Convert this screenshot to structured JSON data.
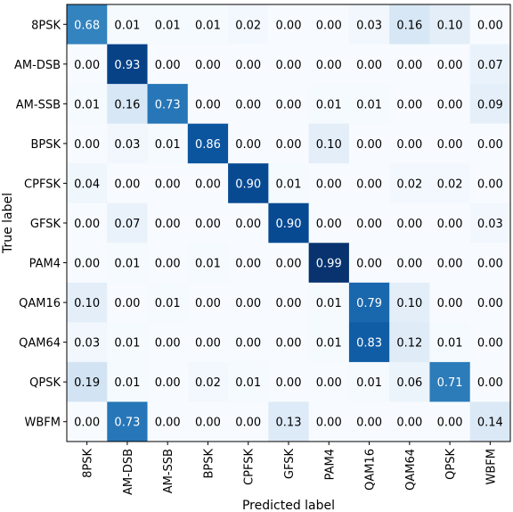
{
  "chart_data": {
    "type": "heatmap",
    "title": "",
    "xlabel": "Predicted label",
    "ylabel": "True label",
    "labels": [
      "8PSK",
      "AM-DSB",
      "AM-SSB",
      "BPSK",
      "CPFSK",
      "GFSK",
      "PAM4",
      "QAM16",
      "QAM64",
      "QPSK",
      "WBFM"
    ],
    "matrix": [
      [
        0.68,
        0.01,
        0.01,
        0.01,
        0.02,
        0.0,
        0.0,
        0.03,
        0.16,
        0.1,
        0.0
      ],
      [
        0.0,
        0.93,
        0.0,
        0.0,
        0.0,
        0.0,
        0.0,
        0.0,
        0.0,
        0.0,
        0.07
      ],
      [
        0.01,
        0.16,
        0.73,
        0.0,
        0.0,
        0.0,
        0.01,
        0.01,
        0.0,
        0.0,
        0.09
      ],
      [
        0.0,
        0.03,
        0.01,
        0.86,
        0.0,
        0.0,
        0.1,
        0.0,
        0.0,
        0.0,
        0.0
      ],
      [
        0.04,
        0.0,
        0.0,
        0.0,
        0.9,
        0.01,
        0.0,
        0.0,
        0.02,
        0.02,
        0.0
      ],
      [
        0.0,
        0.07,
        0.0,
        0.0,
        0.0,
        0.9,
        0.0,
        0.0,
        0.0,
        0.0,
        0.03
      ],
      [
        0.0,
        0.01,
        0.0,
        0.01,
        0.0,
        0.0,
        0.99,
        0.0,
        0.0,
        0.0,
        0.0
      ],
      [
        0.1,
        0.0,
        0.01,
        0.0,
        0.0,
        0.0,
        0.01,
        0.79,
        0.1,
        0.0,
        0.0
      ],
      [
        0.03,
        0.01,
        0.0,
        0.0,
        0.0,
        0.0,
        0.01,
        0.83,
        0.12,
        0.01,
        0.0
      ],
      [
        0.19,
        0.01,
        0.0,
        0.02,
        0.01,
        0.0,
        0.0,
        0.01,
        0.06,
        0.71,
        0.0
      ],
      [
        0.0,
        0.73,
        0.0,
        0.0,
        0.0,
        0.13,
        0.0,
        0.0,
        0.0,
        0.0,
        0.14
      ]
    ],
    "value_format": "2 decimals",
    "colormap": "Blues",
    "value_range": [
      0,
      1
    ],
    "grid": false,
    "legend": "none"
  }
}
